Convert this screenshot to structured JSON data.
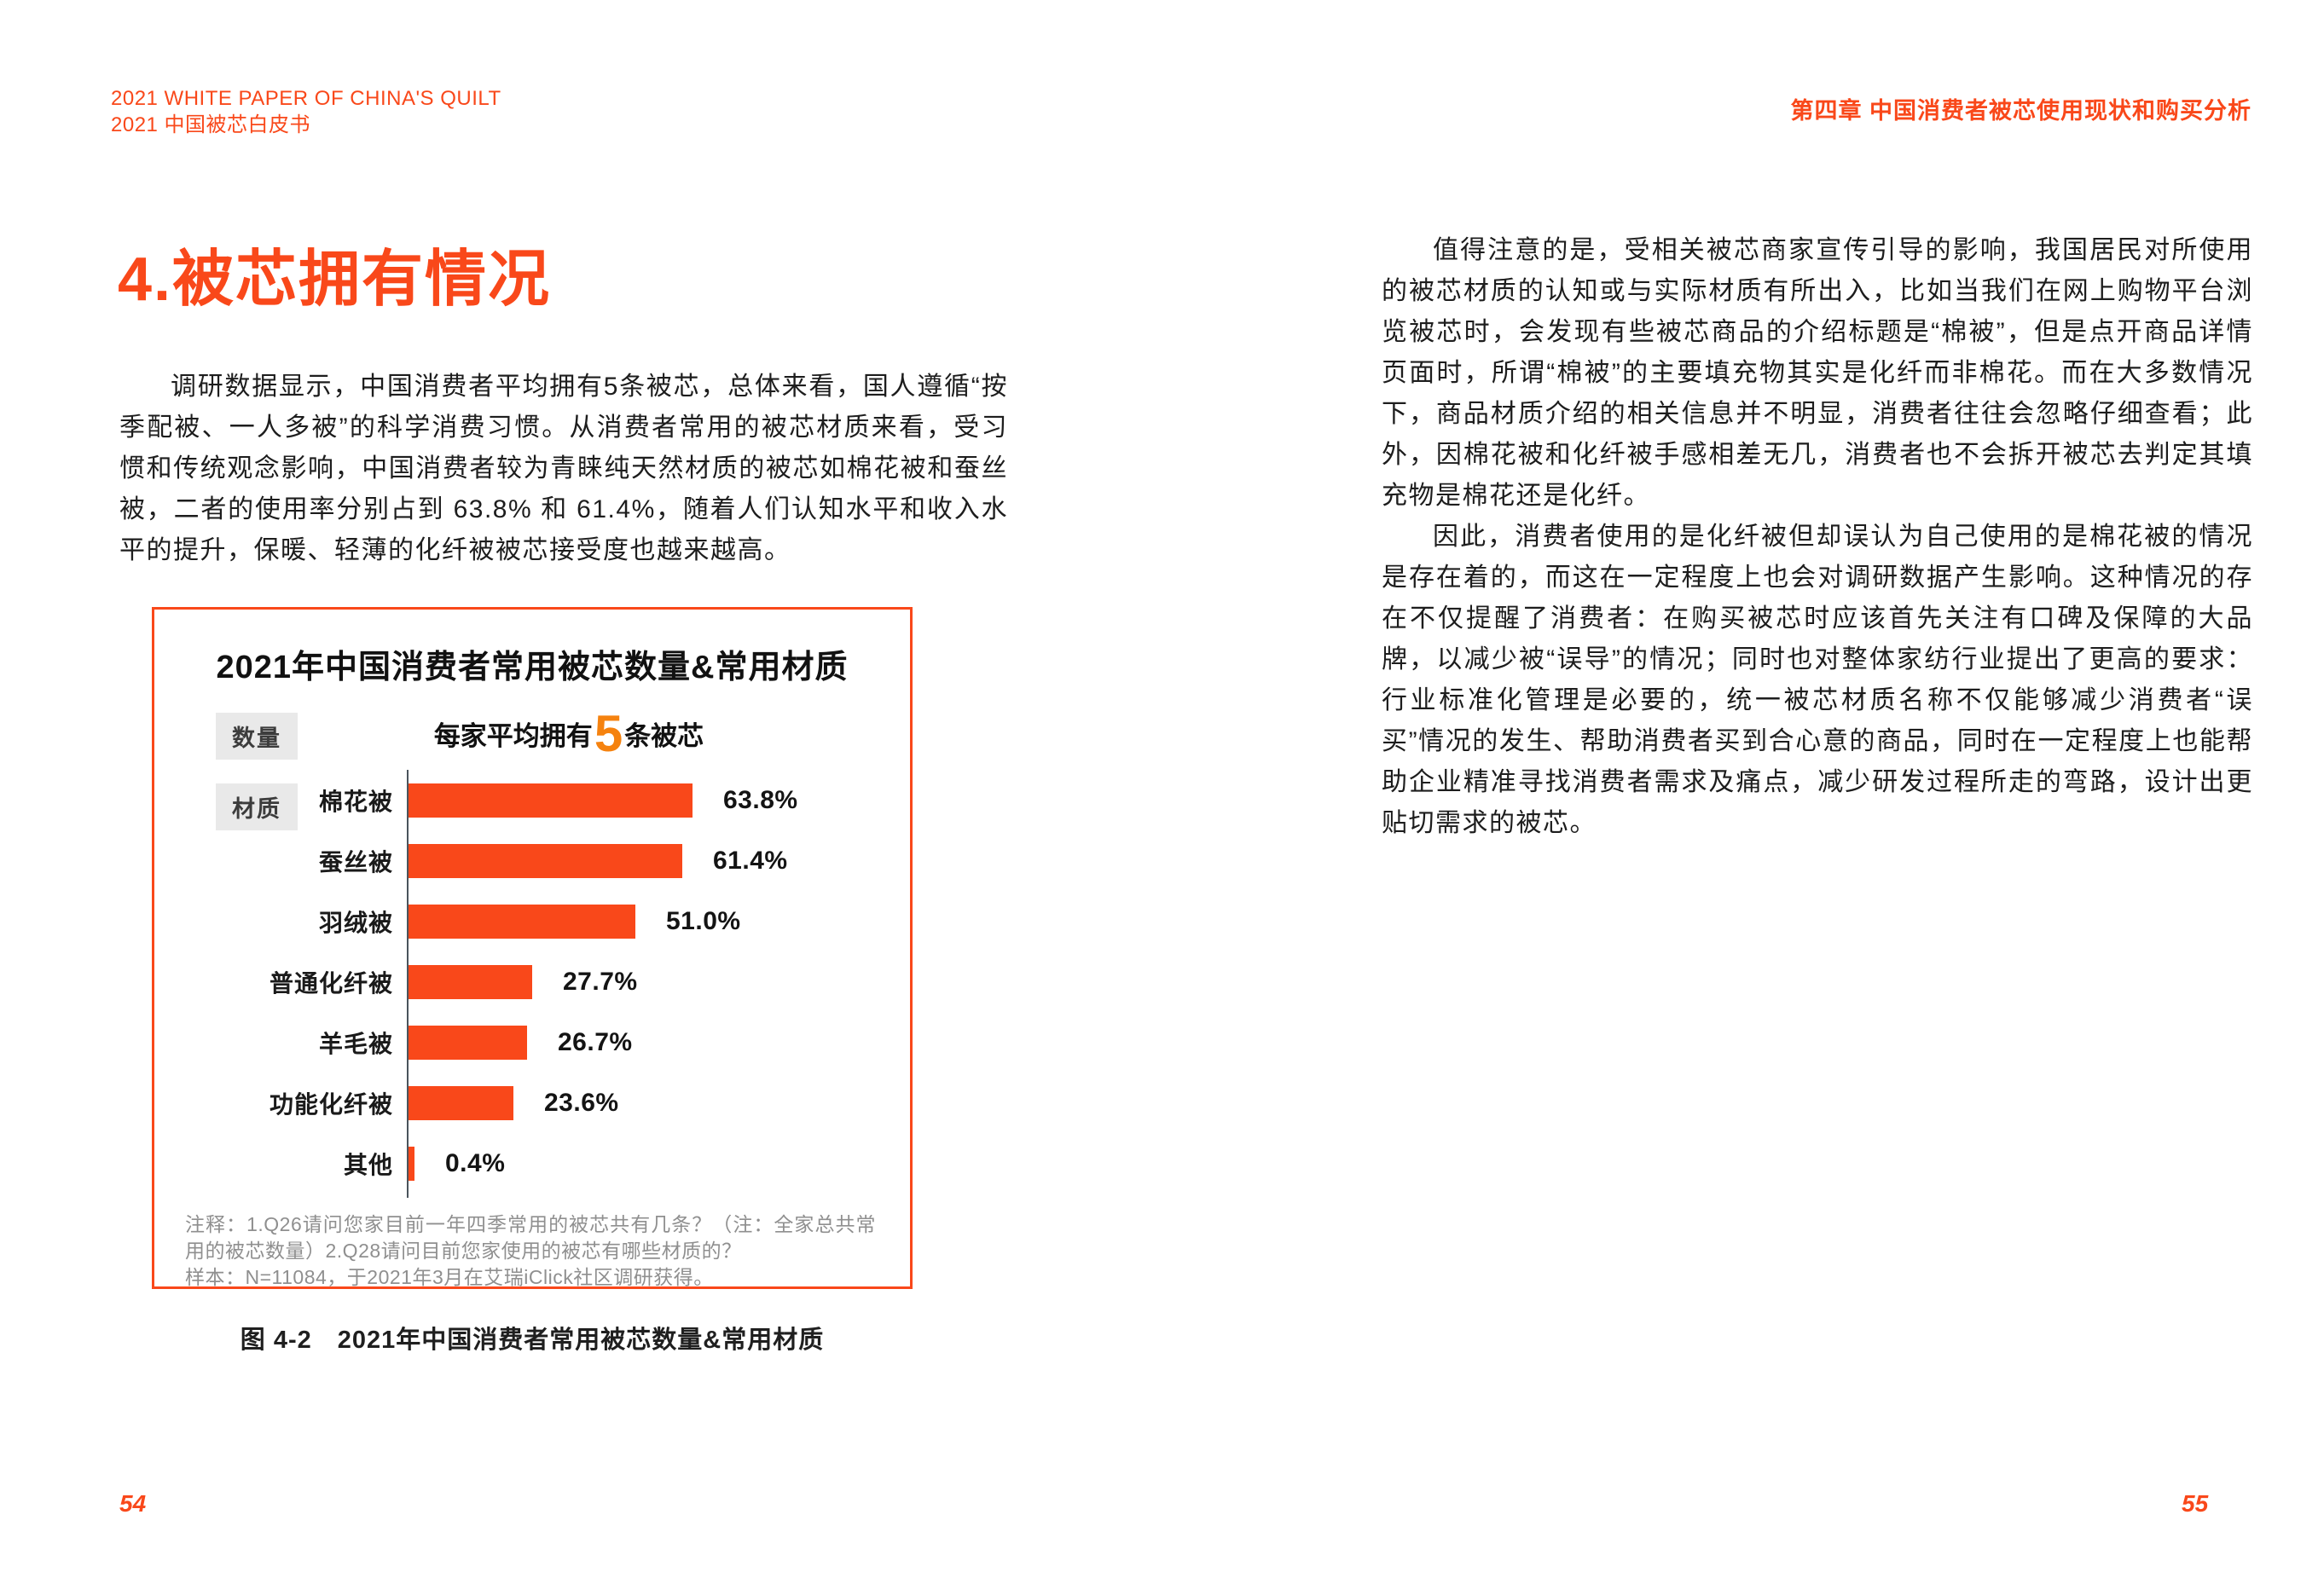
{
  "theme": {
    "accent": "#F9481A",
    "number_orange": "#F5820F",
    "axis_color": "#4A545C",
    "badge_bg": "#E9E9E9",
    "text_color": "#1A1A1A",
    "muted_color": "#8F8F8F"
  },
  "header": {
    "left_line1": "2021 WHITE PAPER OF CHINA'S QUILT",
    "left_line2": "2021 中国被芯白皮书",
    "right_chapter": "第四章  中国消费者被芯使用现状和购买分析"
  },
  "left_page": {
    "section_title": "4.被芯拥有情况",
    "paragraph": "调研数据显示，中国消费者平均拥有5条被芯，总体来看，国人遵循“按季配被、一人多被”的科学消费习惯。从消费者常用的被芯材质来看，受习惯和传统观念影响，中国消费者较为青睐纯天然材质的被芯如棉花被和蚕丝被，二者的使用率分别占到 63.8% 和 61.4%，随着人们认知水平和收入水平的提升，保暖、轻薄的化纤被被芯接受度也越来越高。",
    "figure_caption": "图 4-2　2021年中国消费者常用被芯数量&常用材质",
    "page_number": "54"
  },
  "right_page": {
    "paragraph1": "值得注意的是，受相关被芯商家宣传引导的影响，我国居民对所使用的被芯材质的认知或与实际材质有所出入，比如当我们在网上购物平台浏览被芯时，会发现有些被芯商品的介绍标题是“棉被”，但是点开商品详情页面时，所谓“棉被”的主要填充物其实是化纤而非棉花。而在大多数情况下，商品材质介绍的相关信息并不明显，消费者往往会忽略仔细查看；此外，因棉花被和化纤被手感相差无几，消费者也不会拆开被芯去判定其填充物是棉花还是化纤。",
    "paragraph2": "因此，消费者使用的是化纤被但却误认为自己使用的是棉花被的情况是存在着的，而这在一定程度上也会对调研数据产生影响。这种情况的存在不仅提醒了消费者：在购买被芯时应该首先关注有口碑及保障的大品牌，以减少被“误导”的情况；同时也对整体家纺行业提出了更高的要求：行业标准化管理是必要的，统一被芯材质名称不仅能够减少消费者“误买”情况的发生、帮助消费者买到合心意的商品，同时在一定程度上也能帮助企业精准寻找消费者需求及痛点，减少研发过程所走的弯路，设计出更贴切需求的被芯。",
    "page_number": "55"
  },
  "chart_data": {
    "type": "bar",
    "orientation": "horizontal",
    "title": "2021年中国消费者常用被芯数量&常用材质",
    "quantity_label": "数量",
    "quantity_summary": {
      "prefix": "每家平均拥有",
      "number": "5",
      "suffix": "条被芯"
    },
    "material_label": "材质",
    "categories": [
      "棉花被",
      "蚕丝被",
      "羽绒被",
      "普通化纤被",
      "羊毛被",
      "功能化纤被",
      "其他"
    ],
    "values": [
      63.8,
      61.4,
      51.0,
      27.7,
      26.7,
      23.6,
      0.4
    ],
    "value_labels": [
      "63.8%",
      "61.4%",
      "51.0%",
      "27.7%",
      "26.7%",
      "23.6%",
      "0.4%"
    ],
    "unit": "%",
    "xlim": [
      0,
      100
    ],
    "bar_color": "#F9481A",
    "grid": false,
    "legend": false,
    "notes": [
      "注释：1.Q26请问您家目前一年四季常用的被芯共有几条？（注：全家总共常用的被芯数量）2.Q28请问目前您家使用的被芯有哪些材质的？",
      "样本：N=11084，于2021年3月在艾瑞iClick社区调研获得。"
    ]
  }
}
